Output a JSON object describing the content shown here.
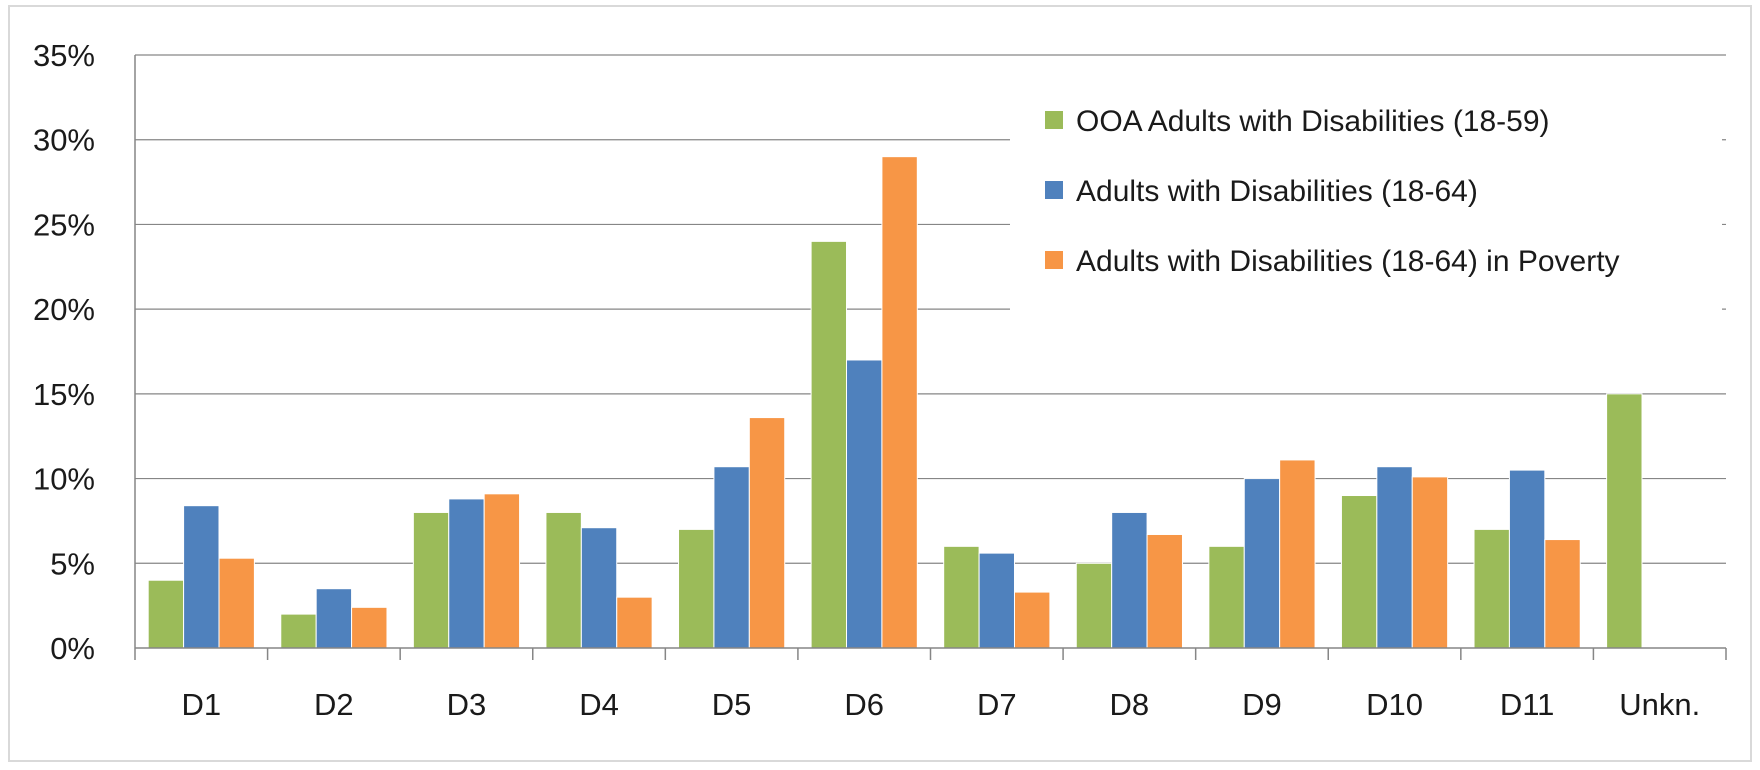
{
  "chart_data": {
    "type": "bar",
    "title": "",
    "xlabel": "",
    "ylabel": "",
    "ylim": [
      0,
      35
    ],
    "y_unit": "%",
    "y_ticks": [
      "0%",
      "5%",
      "10%",
      "15%",
      "20%",
      "25%",
      "30%",
      "35%"
    ],
    "grid": true,
    "legend_position": "top-right",
    "categories": [
      "D1",
      "D2",
      "D3",
      "D4",
      "D5",
      "D6",
      "D7",
      "D8",
      "D9",
      "D10",
      "D11",
      "Unkn."
    ],
    "series": [
      {
        "name": "OOA Adults with Disabilities (18-59)",
        "color": "#9bbb59",
        "values": [
          4,
          2,
          8,
          8,
          7,
          24,
          6,
          5,
          6,
          9,
          7,
          15
        ]
      },
      {
        "name": "Adults with Disabilities (18-64)",
        "color": "#4f81bd",
        "values": [
          8.4,
          3.5,
          8.8,
          7.1,
          10.7,
          17,
          5.6,
          8,
          10,
          10.7,
          10.5,
          null
        ]
      },
      {
        "name": "Adults with Disabilities (18-64) in Poverty",
        "color": "#f79646",
        "values": [
          5.3,
          2.4,
          9.1,
          3,
          13.6,
          29,
          3.3,
          6.7,
          11.1,
          10.1,
          6.4,
          null
        ]
      }
    ]
  }
}
